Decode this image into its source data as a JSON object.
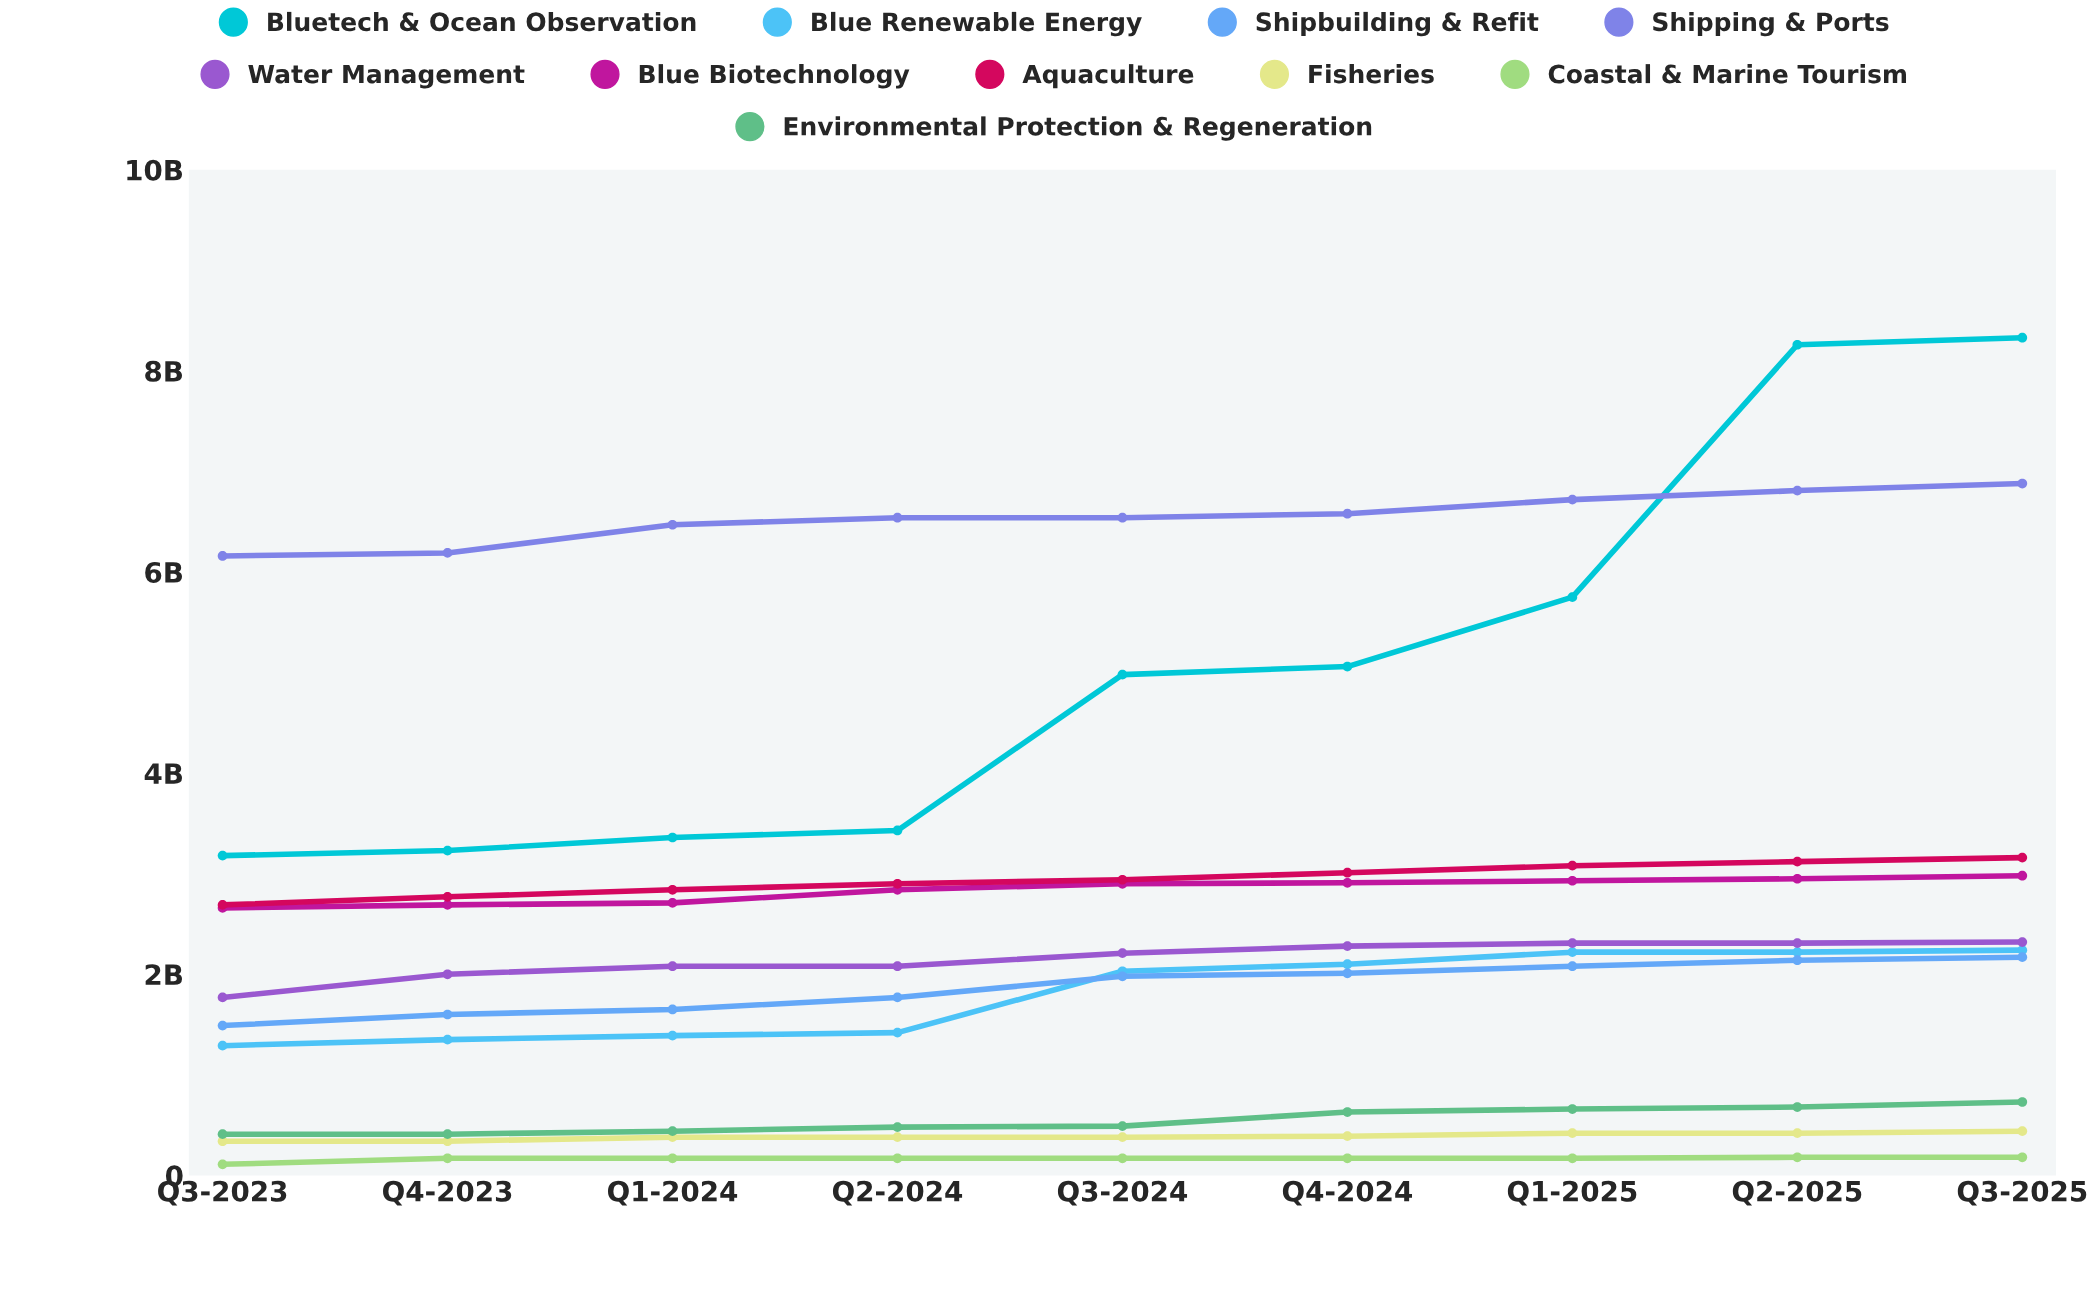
{
  "chart_data": {
    "type": "line",
    "categories": [
      "Q3-2023",
      "Q4-2023",
      "Q1-2024",
      "Q2-2024",
      "Q3-2024",
      "Q4-2024",
      "Q1-2025",
      "Q2-2025",
      "Q3-2025"
    ],
    "ylim": [
      0,
      10
    ],
    "yticks": [
      0,
      {
        "value": 2,
        "label": "2B"
      },
      {
        "value": 4,
        "label": "4B"
      },
      {
        "value": 6,
        "label": "6B"
      },
      {
        "value": 8,
        "label": "8B"
      },
      {
        "value": 10,
        "label": "10B"
      }
    ],
    "grid": false,
    "legend": "top",
    "marker": "circle",
    "line_style": "solid",
    "series": [
      {
        "name": "Bluetech & Ocean Observation",
        "color": "#00c8d7",
        "values": [
          3.18,
          3.23,
          3.36,
          3.43,
          4.98,
          5.06,
          5.75,
          8.26,
          8.33
        ]
      },
      {
        "name": "Blue Renewable Energy",
        "color": "#4cc3f7",
        "values": [
          1.29,
          1.35,
          1.39,
          1.42,
          2.03,
          2.1,
          2.22,
          2.22,
          2.24
        ]
      },
      {
        "name": "Shipbuilding & Refit",
        "color": "#64a8f8",
        "values": [
          1.49,
          1.6,
          1.65,
          1.77,
          1.98,
          2.01,
          2.08,
          2.14,
          2.17
        ]
      },
      {
        "name": "Shipping & Ports",
        "color": "#7f83e8",
        "values": [
          6.16,
          6.19,
          6.47,
          6.54,
          6.54,
          6.58,
          6.72,
          6.81,
          6.88
        ]
      },
      {
        "name": "Water Management",
        "color": "#9a58d0",
        "values": [
          1.77,
          2.0,
          2.08,
          2.08,
          2.21,
          2.28,
          2.31,
          2.31,
          2.32
        ]
      },
      {
        "name": "Blue Biotechnology",
        "color": "#c0169e",
        "values": [
          2.66,
          2.69,
          2.71,
          2.84,
          2.9,
          2.91,
          2.93,
          2.95,
          2.98
        ]
      },
      {
        "name": "Aquaculture",
        "color": "#d4075e",
        "values": [
          2.69,
          2.77,
          2.84,
          2.9,
          2.94,
          3.01,
          3.08,
          3.12,
          3.16
        ]
      },
      {
        "name": "Fisheries",
        "color": "#e4e88a",
        "values": [
          0.34,
          0.34,
          0.38,
          0.38,
          0.38,
          0.39,
          0.42,
          0.42,
          0.44
        ]
      },
      {
        "name": "Coastal & Marine Tourism",
        "color": "#a0dc80",
        "values": [
          0.11,
          0.17,
          0.17,
          0.17,
          0.17,
          0.17,
          0.17,
          0.18,
          0.18
        ]
      },
      {
        "name": "Environmental Protection & Regeneration",
        "color": "#5fbf88",
        "values": [
          0.41,
          0.41,
          0.44,
          0.48,
          0.49,
          0.63,
          0.66,
          0.68,
          0.73
        ]
      }
    ]
  }
}
